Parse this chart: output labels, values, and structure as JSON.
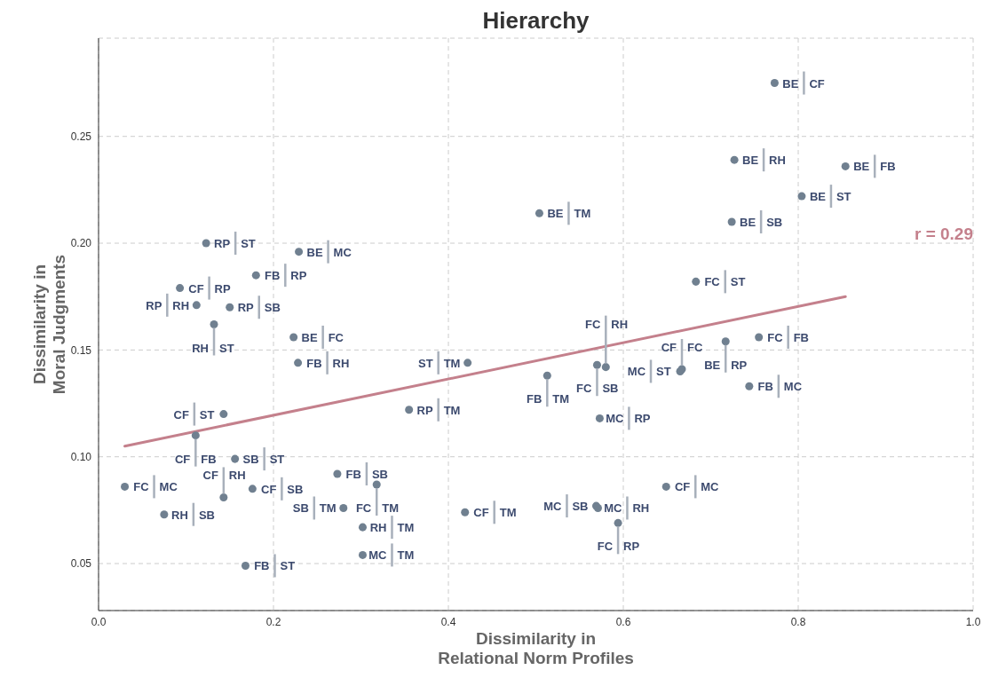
{
  "chart_data": {
    "type": "scatter",
    "title": "Hierarchy",
    "xlabel": "Dissimilarity in\nRelational Norm Profiles",
    "ylabel": "Dissimilarity in\nMoral Judgments",
    "series": [
      {
        "color": "#708090",
        "x": [
          0.773,
          0.727,
          0.854,
          0.804,
          0.504,
          0.724,
          0.683,
          0.717,
          0.755,
          0.667,
          0.665,
          0.744,
          0.513,
          0.57,
          0.58,
          0.422,
          0.573,
          0.649,
          0.419,
          0.571,
          0.569,
          0.594,
          0.123,
          0.229,
          0.18,
          0.093,
          0.112,
          0.15,
          0.132,
          0.223,
          0.228,
          0.143,
          0.111,
          0.355,
          0.156,
          0.03,
          0.176,
          0.143,
          0.075,
          0.273,
          0.318,
          0.28,
          0.302,
          0.302,
          0.168
        ],
        "values": [
          0.275,
          0.239,
          0.236,
          0.222,
          0.214,
          0.21,
          0.182,
          0.154,
          0.156,
          0.141,
          0.14,
          0.133,
          0.138,
          0.143,
          0.142,
          0.144,
          0.118,
          0.086,
          0.074,
          0.076,
          0.077,
          0.069,
          0.2,
          0.196,
          0.185,
          0.179,
          0.171,
          0.17,
          0.162,
          0.156,
          0.144,
          0.12,
          0.11,
          0.122,
          0.099,
          0.086,
          0.085,
          0.081,
          0.073,
          0.092,
          0.087,
          0.076,
          0.067,
          0.054,
          0.049
        ]
      },
      {
        "type": "line",
        "marker": "none",
        "color": "#c4808c",
        "x": [
          0.03,
          0.854
        ],
        "values": [
          0.105,
          0.175
        ]
      }
    ],
    "xlim": [
      0,
      1
    ],
    "xticks": [
      {
        "value": 0,
        "label": "0.0"
      },
      {
        "value": 0.2,
        "label": "0.2"
      },
      {
        "value": 0.4,
        "label": "0.4"
      },
      {
        "value": 0.6,
        "label": "0.6"
      },
      {
        "value": 0.8,
        "label": "0.8"
      },
      {
        "value": 1,
        "label": "1.0"
      }
    ],
    "ylim": [
      0.028,
      0.296
    ],
    "yticks": [
      {
        "value": 0.05,
        "label": "0.05"
      },
      {
        "value": 0.1,
        "label": "0.10"
      },
      {
        "value": 0.15,
        "label": "0.15"
      },
      {
        "value": 0.2,
        "label": "0.20"
      },
      {
        "value": 0.25,
        "label": "0.25"
      }
    ],
    "grid": true,
    "marker": "circle",
    "line_style": "solid",
    "annotations": [
      {
        "text": "BE CF",
        "x": 0.773,
        "y": 0.275
      },
      {
        "text": "BE RH",
        "x": 0.727,
        "y": 0.239
      },
      {
        "text": "BE FB",
        "x": 0.854,
        "y": 0.236
      },
      {
        "text": "BE ST",
        "x": 0.804,
        "y": 0.222
      },
      {
        "text": "BE TM",
        "x": 0.504,
        "y": 0.214
      },
      {
        "text": "BE SB",
        "x": 0.724,
        "y": 0.21
      },
      {
        "text": "FC ST",
        "x": 0.683,
        "y": 0.182
      },
      {
        "text": "BE RP",
        "x": 0.717,
        "y": 0.154
      },
      {
        "text": "FC FB",
        "x": 0.755,
        "y": 0.156
      },
      {
        "text": "CF FC",
        "x": 0.667,
        "y": 0.141
      },
      {
        "text": "MC ST",
        "x": 0.665,
        "y": 0.14
      },
      {
        "text": "FB MC",
        "x": 0.744,
        "y": 0.133
      },
      {
        "text": "FB TM",
        "x": 0.513,
        "y": 0.138
      },
      {
        "text": "FC SB",
        "x": 0.57,
        "y": 0.143
      },
      {
        "text": "FC RH",
        "x": 0.58,
        "y": 0.142
      },
      {
        "text": "ST TM",
        "x": 0.422,
        "y": 0.144
      },
      {
        "text": "MC RP",
        "x": 0.573,
        "y": 0.118
      },
      {
        "text": "CF MC",
        "x": 0.649,
        "y": 0.086
      },
      {
        "text": "CF TM",
        "x": 0.419,
        "y": 0.074
      },
      {
        "text": "MC RH",
        "x": 0.571,
        "y": 0.076
      },
      {
        "text": "MC SB",
        "x": 0.569,
        "y": 0.077
      },
      {
        "text": "FC RP",
        "x": 0.594,
        "y": 0.069
      },
      {
        "text": "RP ST",
        "x": 0.123,
        "y": 0.2
      },
      {
        "text": "BE MC",
        "x": 0.229,
        "y": 0.196
      },
      {
        "text": "FB RP",
        "x": 0.18,
        "y": 0.185
      },
      {
        "text": "CF RP",
        "x": 0.093,
        "y": 0.179
      },
      {
        "text": "RP RH",
        "x": 0.112,
        "y": 0.171
      },
      {
        "text": "RP SB",
        "x": 0.15,
        "y": 0.17
      },
      {
        "text": "RH ST",
        "x": 0.132,
        "y": 0.162
      },
      {
        "text": "BE FC",
        "x": 0.223,
        "y": 0.156
      },
      {
        "text": "FB RH",
        "x": 0.228,
        "y": 0.144
      },
      {
        "text": "CF ST",
        "x": 0.143,
        "y": 0.12
      },
      {
        "text": "CF FB",
        "x": 0.111,
        "y": 0.11
      },
      {
        "text": "RP TM",
        "x": 0.355,
        "y": 0.122
      },
      {
        "text": "SB ST",
        "x": 0.156,
        "y": 0.099
      },
      {
        "text": "FC MC",
        "x": 0.03,
        "y": 0.086
      },
      {
        "text": "CF SB",
        "x": 0.176,
        "y": 0.085
      },
      {
        "text": "CF RH",
        "x": 0.143,
        "y": 0.081
      },
      {
        "text": "RH SB",
        "x": 0.075,
        "y": 0.073
      },
      {
        "text": "FB SB",
        "x": 0.273,
        "y": 0.092
      },
      {
        "text": "FC TM",
        "x": 0.318,
        "y": 0.087
      },
      {
        "text": "SB TM",
        "x": 0.28,
        "y": 0.076
      },
      {
        "text": "RH TM",
        "x": 0.302,
        "y": 0.067
      },
      {
        "text": "MC TM",
        "x": 0.302,
        "y": 0.054
      },
      {
        "text": "FB ST",
        "x": 0.168,
        "y": 0.049
      },
      "r = 0.29"
    ]
  }
}
